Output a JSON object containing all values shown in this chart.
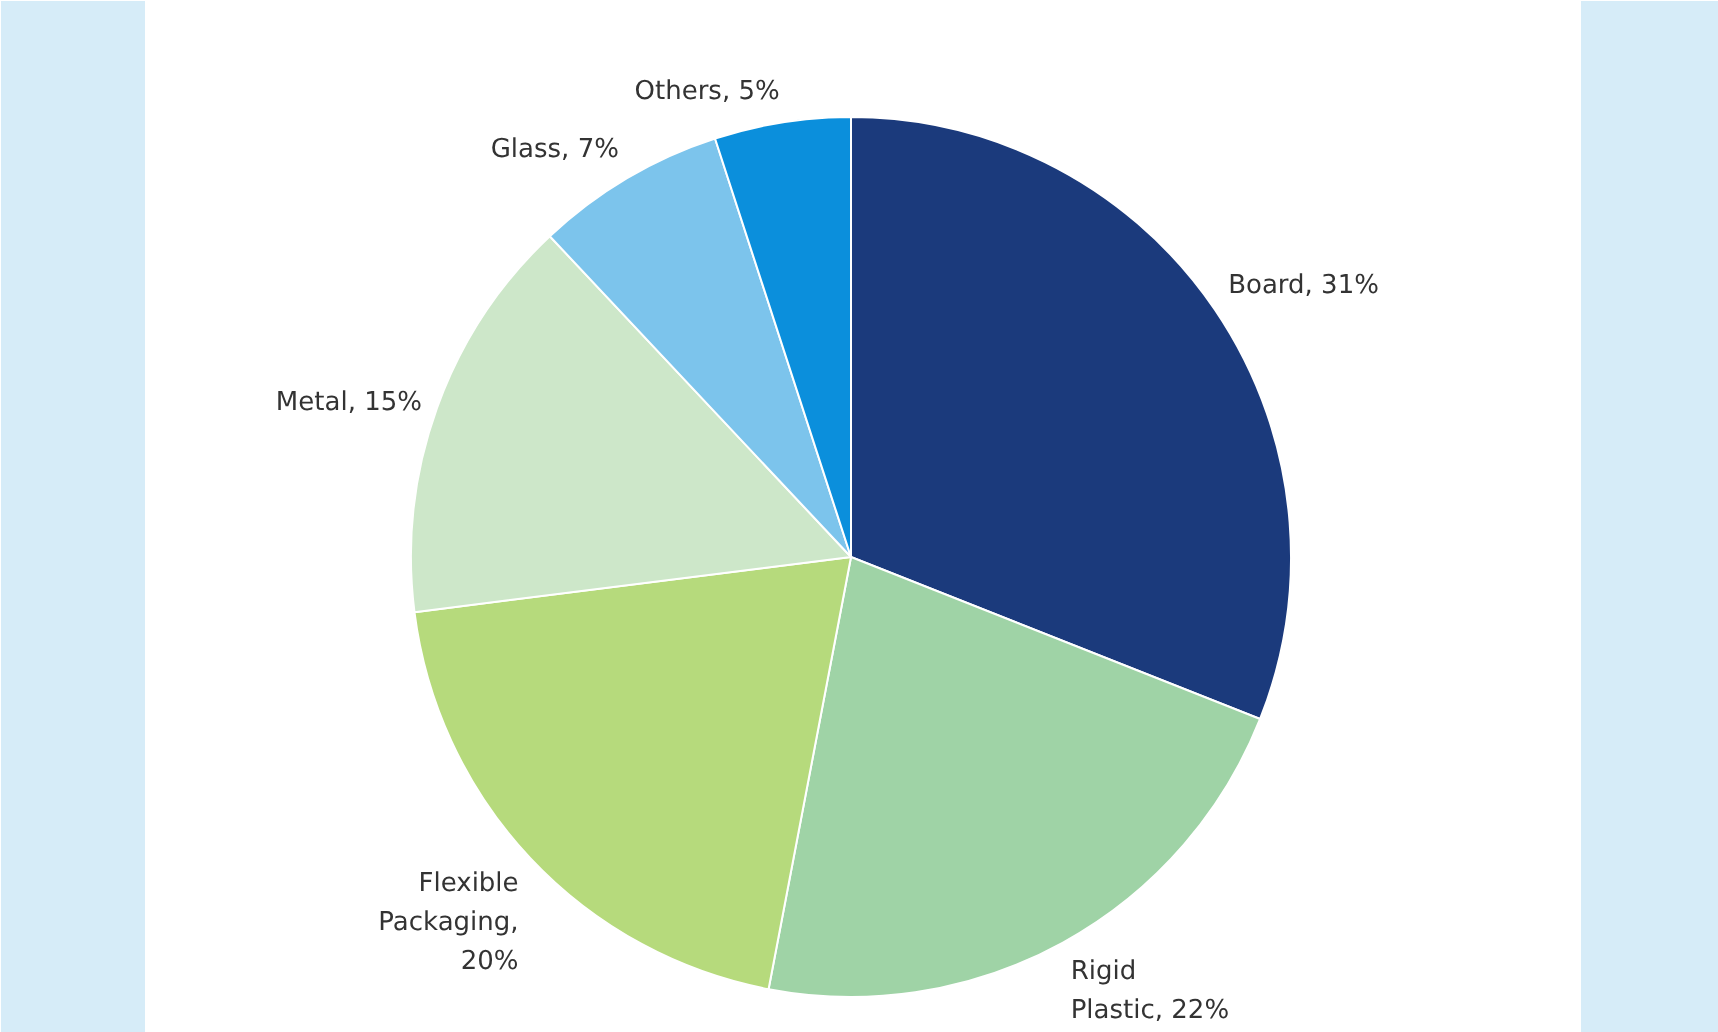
{
  "chart_data": {
    "type": "pie",
    "categories": [
      "Board, 31%",
      "Rigid Plastic, 22%",
      "Flexible Packaging, 20%",
      "Metal, 15%",
      "Glass, 7%",
      "Others, 5%"
    ],
    "values": [
      31,
      22,
      20,
      15,
      7,
      5
    ],
    "colors": [
      "#1b3a7c",
      "#9fd3a6",
      "#b6da7c",
      "#cde7c9",
      "#7cc4ec",
      "#0b8fdc"
    ]
  }
}
